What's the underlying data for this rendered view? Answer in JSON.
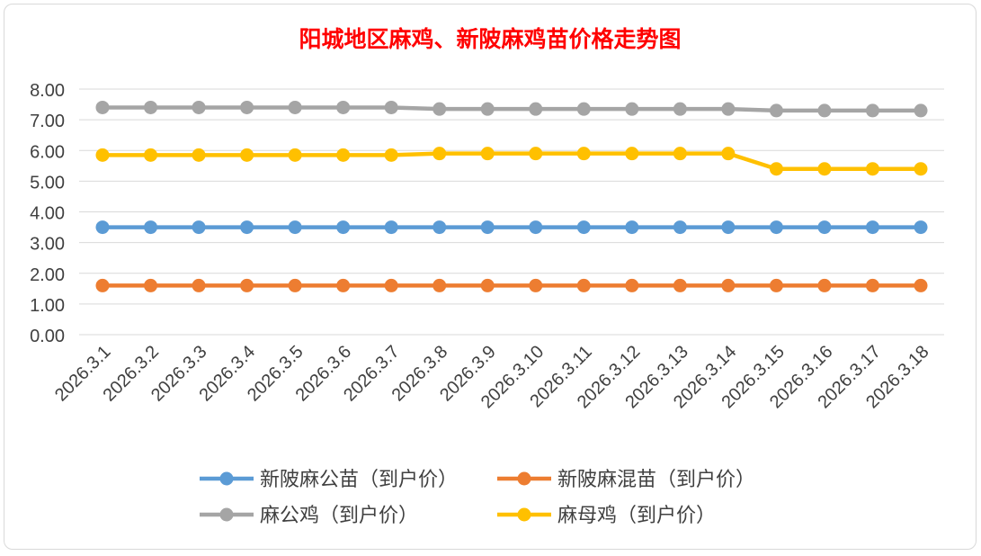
{
  "chart_data": {
    "type": "line",
    "title": "阳城地区麻鸡、新陂麻鸡苗价格走势图",
    "title_color": "#ff0000",
    "categories": [
      "2026.3.1",
      "2026.3.2",
      "2026.3.3",
      "2026.3.4",
      "2026.3.5",
      "2026.3.6",
      "2026.3.7",
      "2026.3.8",
      "2026.3.9",
      "2026.3.10",
      "2026.3.11",
      "2026.3.12",
      "2026.3.13",
      "2026.3.14",
      "2026.3.15",
      "2026.3.16",
      "2026.3.17",
      "2026.3.18"
    ],
    "ylim": [
      0,
      8
    ],
    "yticks": [
      "0.00",
      "1.00",
      "2.00",
      "3.00",
      "4.00",
      "5.00",
      "6.00",
      "7.00",
      "8.00"
    ],
    "grid": true,
    "legend_position": "bottom",
    "series": [
      {
        "name": "新陂麻公苗（到户价）",
        "color": "#5b9bd5",
        "values": [
          3.5,
          3.5,
          3.5,
          3.5,
          3.5,
          3.5,
          3.5,
          3.5,
          3.5,
          3.5,
          3.5,
          3.5,
          3.5,
          3.5,
          3.5,
          3.5,
          3.5,
          3.5
        ]
      },
      {
        "name": "新陂麻混苗（到户价）",
        "color": "#ed7d31",
        "values": [
          1.6,
          1.6,
          1.6,
          1.6,
          1.6,
          1.6,
          1.6,
          1.6,
          1.6,
          1.6,
          1.6,
          1.6,
          1.6,
          1.6,
          1.6,
          1.6,
          1.6,
          1.6
        ]
      },
      {
        "name": "麻公鸡（到户价）",
        "color": "#a5a5a5",
        "values": [
          7.4,
          7.4,
          7.4,
          7.4,
          7.4,
          7.4,
          7.4,
          7.35,
          7.35,
          7.35,
          7.35,
          7.35,
          7.35,
          7.35,
          7.3,
          7.3,
          7.3,
          7.3
        ]
      },
      {
        "name": "麻母鸡（到户价）",
        "color": "#ffc000",
        "values": [
          5.85,
          5.85,
          5.85,
          5.85,
          5.85,
          5.85,
          5.85,
          5.9,
          5.9,
          5.9,
          5.9,
          5.9,
          5.9,
          5.9,
          5.4,
          5.4,
          5.4,
          5.4
        ]
      }
    ]
  }
}
